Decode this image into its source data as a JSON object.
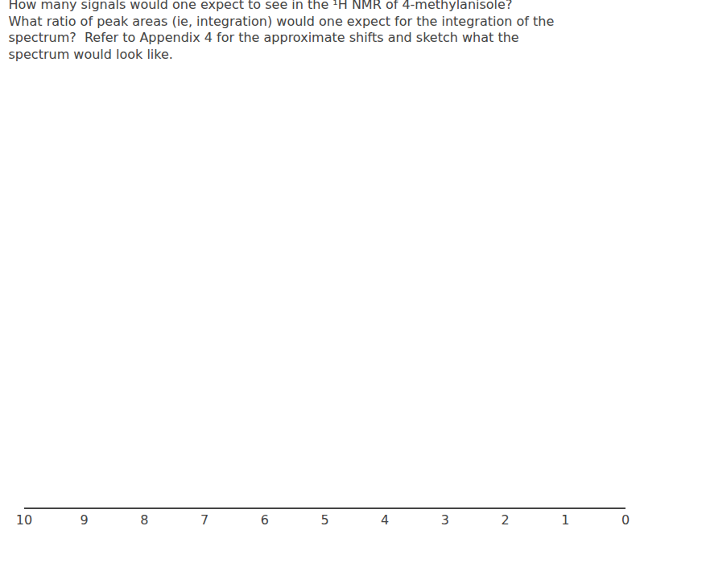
{
  "chart_data": {
    "type": "blank",
    "title": "How many signals would one expect to see in the ¹H NMR of 4-methylanisole?\nWhat ratio of peak areas (ie, integration) would one expect for the integration of the\nspectrum?  Refer to Appendix 4 for the approximate shifts and sketch what the\nspectrum would look like.",
    "xlim": [
      10,
      0
    ],
    "xticks": [
      0,
      1,
      2,
      3,
      4,
      5,
      6,
      7,
      8,
      9,
      10
    ],
    "ylim": [
      0,
      1
    ],
    "tick_labels": "x",
    "grid": false
  }
}
